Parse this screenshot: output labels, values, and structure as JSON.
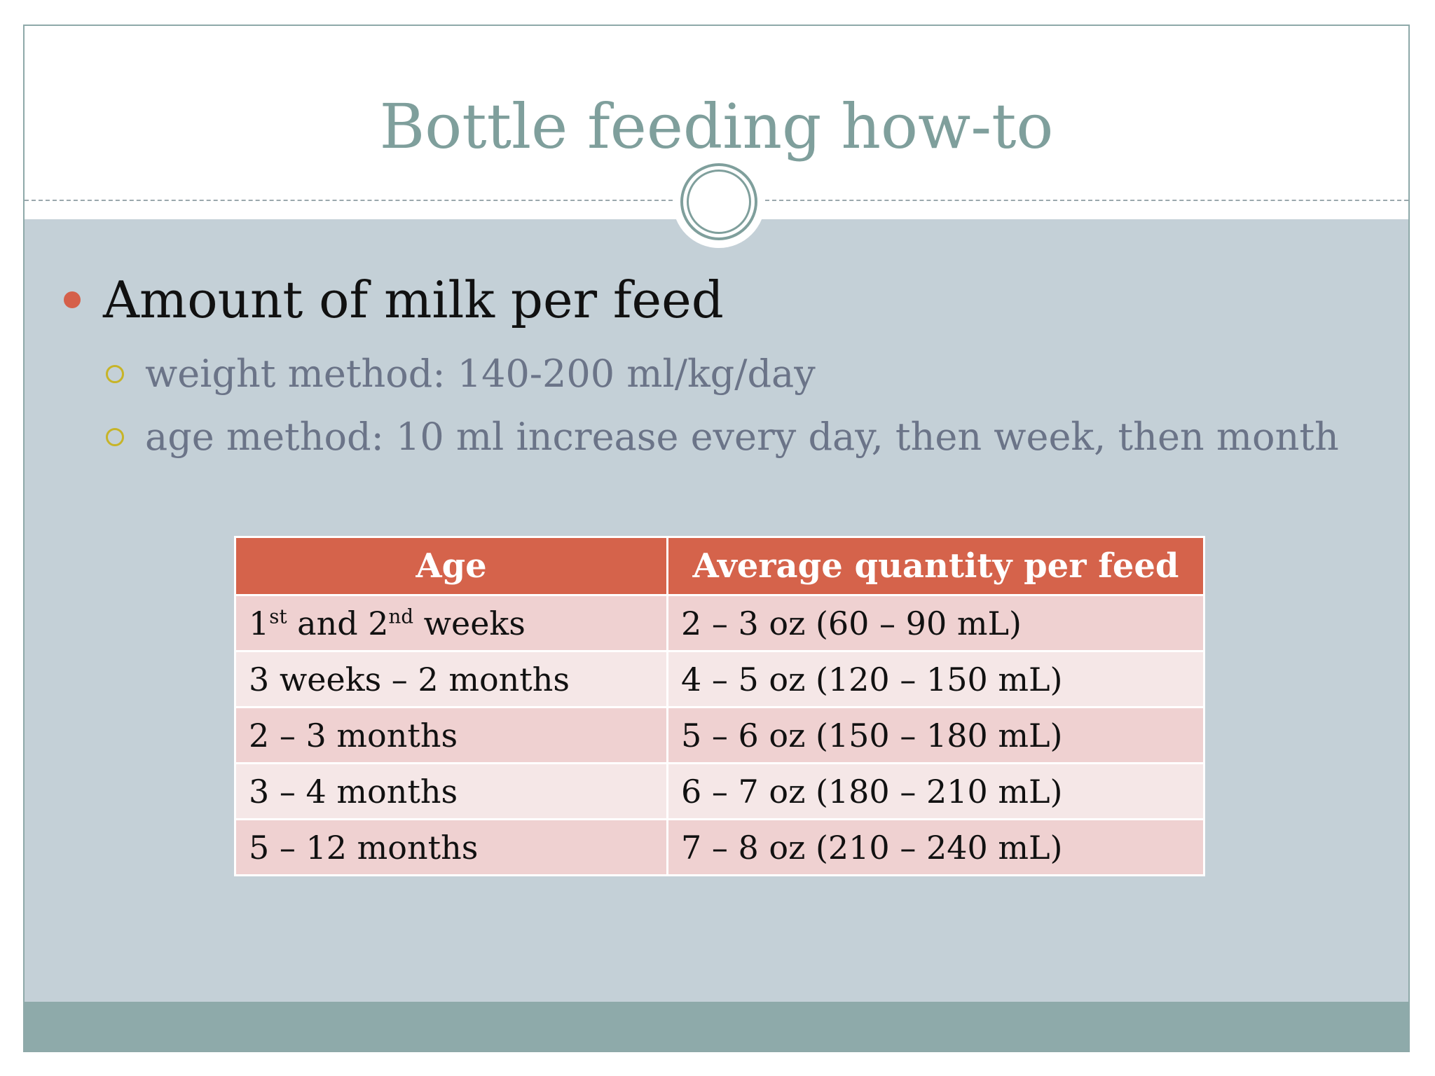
{
  "title": "Bottle feeding how-to",
  "bullet": {
    "text": "Amount of milk per feed",
    "sub_items": [
      "weight method: 140-200 ml/kg/day",
      "age method: 10 ml increase every day, then week, then month"
    ]
  },
  "table": {
    "headers": [
      "Age",
      "Average quantity per feed"
    ],
    "rows": [
      {
        "age_parts": [
          "1",
          "st",
          " and 2",
          "nd",
          " weeks"
        ],
        "quantity": "2 – 3 oz (60 – 90 mL)"
      },
      {
        "age": "3 weeks – 2 months",
        "quantity": "4 – 5 oz (120 – 150 mL)"
      },
      {
        "age": "2 – 3 months",
        "quantity": "5 – 6 oz (150 – 180 mL)"
      },
      {
        "age": "3 – 4 months",
        "quantity": "6 – 7 oz (180 – 210 mL)"
      },
      {
        "age": "5 – 12 months",
        "quantity": "7 – 8 oz (210 – 240 mL)"
      }
    ]
  },
  "colors": {
    "title": "#7f9f9c",
    "header_fill": "#d5634b",
    "row_odd": "#efd1d1",
    "row_even": "#f5e7e7",
    "body_background": "#c4d0d7",
    "footer": "#8eaaaa",
    "bullet": "#d5604a",
    "sub_bullet_ring": "#c7b428"
  },
  "icons": {
    "bullet": "filled-circle-bullet",
    "sub_bullet": "hollow-circle-bullet",
    "divider": "double-ring-ornament"
  }
}
